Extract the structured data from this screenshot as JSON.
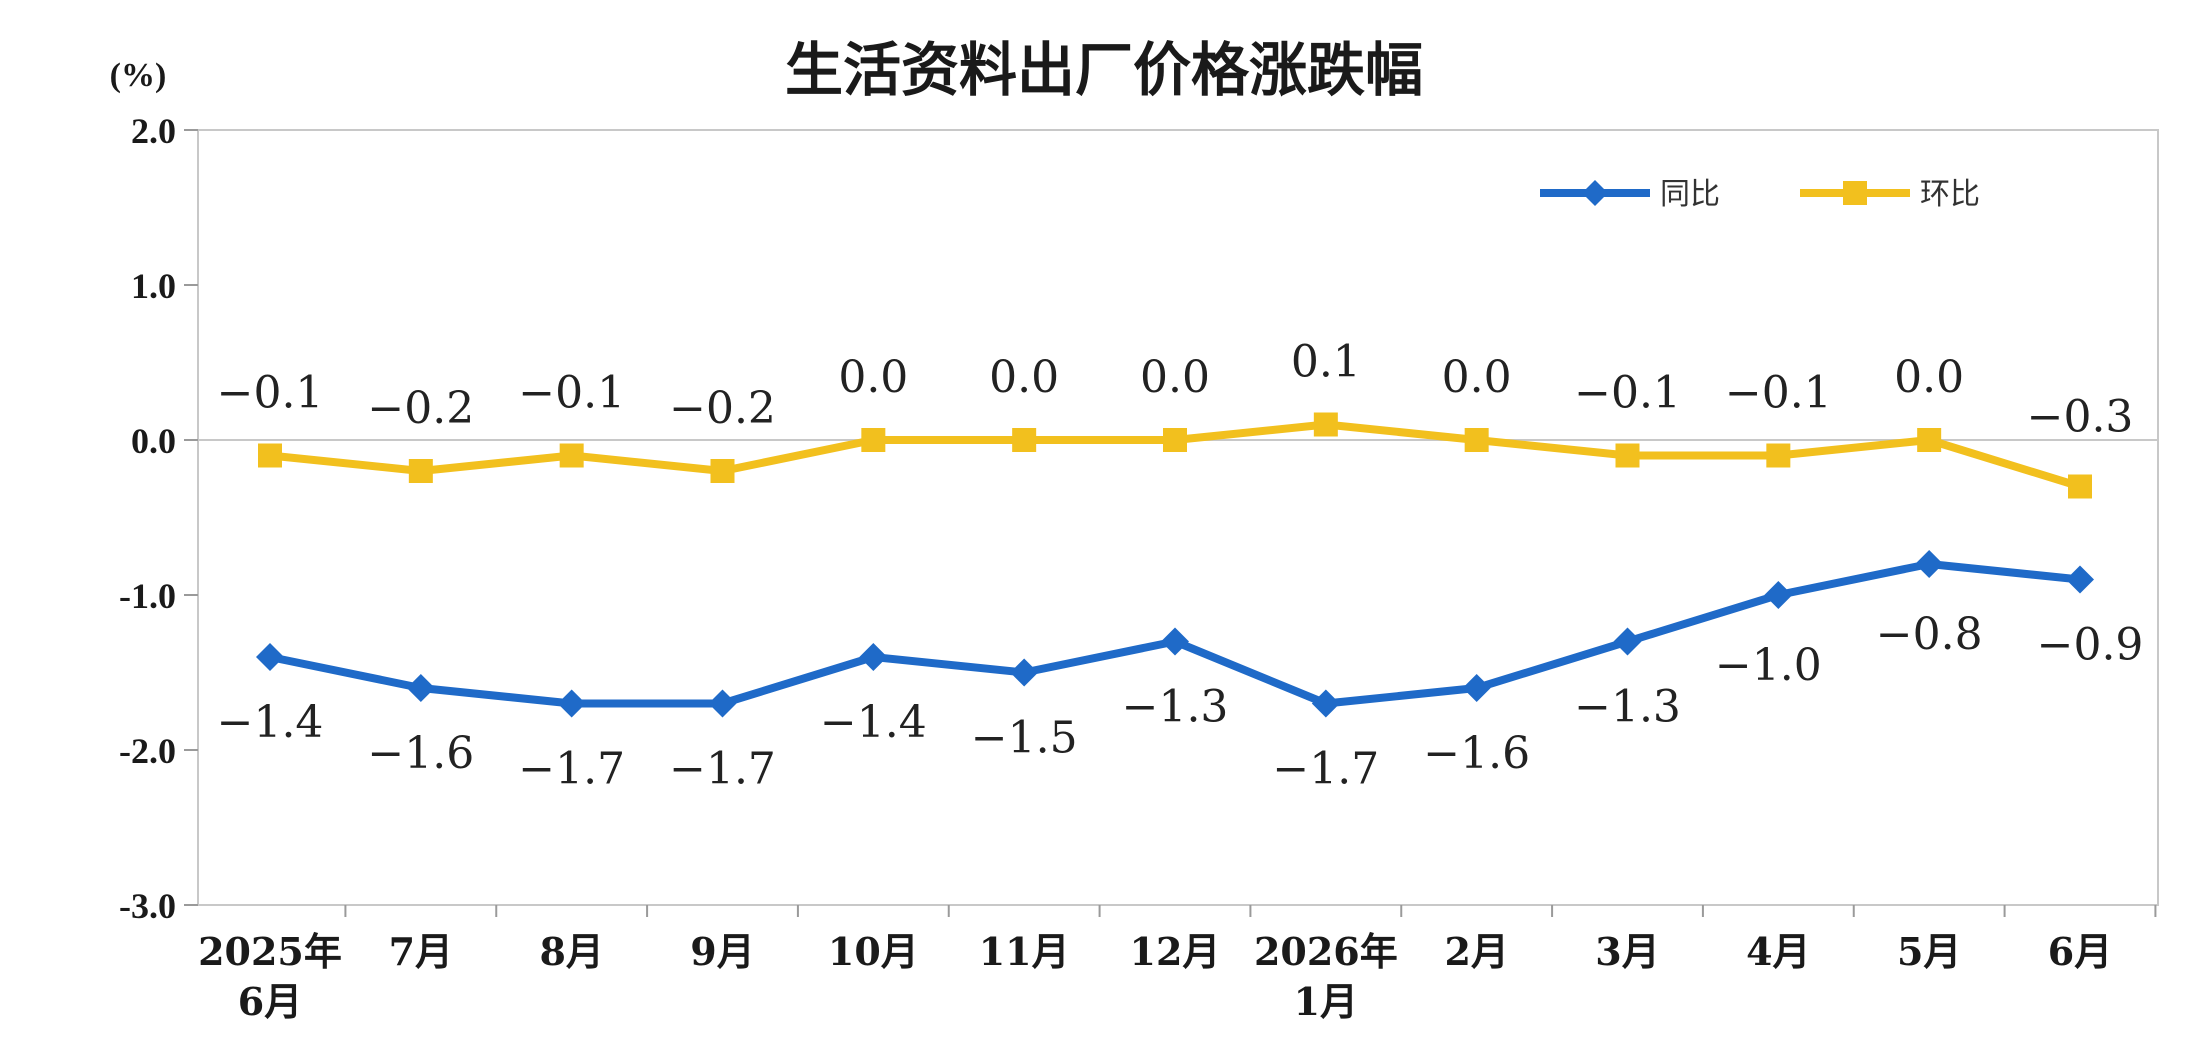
{
  "chart_data": {
    "type": "line",
    "title": "生活资料出厂价格涨跌幅",
    "unit": "(%)",
    "categories": [
      [
        "2025年",
        "6月"
      ],
      [
        "7月"
      ],
      [
        "8月"
      ],
      [
        "9月"
      ],
      [
        "10月"
      ],
      [
        "11月"
      ],
      [
        "12月"
      ],
      [
        "2026年",
        "1月"
      ],
      [
        "2月"
      ],
      [
        "3月"
      ],
      [
        "4月"
      ],
      [
        "5月"
      ],
      [
        "6月"
      ]
    ],
    "ylim": [
      -3.0,
      2.0
    ],
    "yticks": [
      "2.0",
      "1.0",
      "0.0",
      "-1.0",
      "-2.0",
      "-3.0"
    ],
    "ytick_values": [
      2.0,
      1.0,
      0.0,
      -1.0,
      -2.0,
      -3.0
    ],
    "grid": false,
    "legend_position": "top-right",
    "series": [
      {
        "name": "同比",
        "color": "#1f6ac8",
        "marker": "diamond",
        "values": [
          -1.4,
          -1.6,
          -1.7,
          -1.7,
          -1.4,
          -1.5,
          -1.3,
          -1.7,
          -1.6,
          -1.3,
          -1.0,
          -0.8,
          -0.9
        ],
        "labels": [
          "−1.4",
          "−1.6",
          "−1.7",
          "−1.7",
          "−1.4",
          "−1.5",
          "−1.3",
          "−1.7",
          "−1.6",
          "−1.3",
          "−1.0",
          "−0.8",
          "−0.9"
        ]
      },
      {
        "name": "环比",
        "color": "#f2c01e",
        "marker": "square",
        "values": [
          -0.1,
          -0.2,
          -0.1,
          -0.2,
          0.0,
          0.0,
          0.0,
          0.1,
          0.0,
          -0.1,
          -0.1,
          0.0,
          -0.3
        ],
        "labels": [
          "−0.1",
          "−0.2",
          "−0.1",
          "−0.2",
          "0.0",
          "0.0",
          "0.0",
          "0.1",
          "0.0",
          "−0.1",
          "−0.1",
          "0.0",
          "−0.3"
        ]
      }
    ]
  }
}
